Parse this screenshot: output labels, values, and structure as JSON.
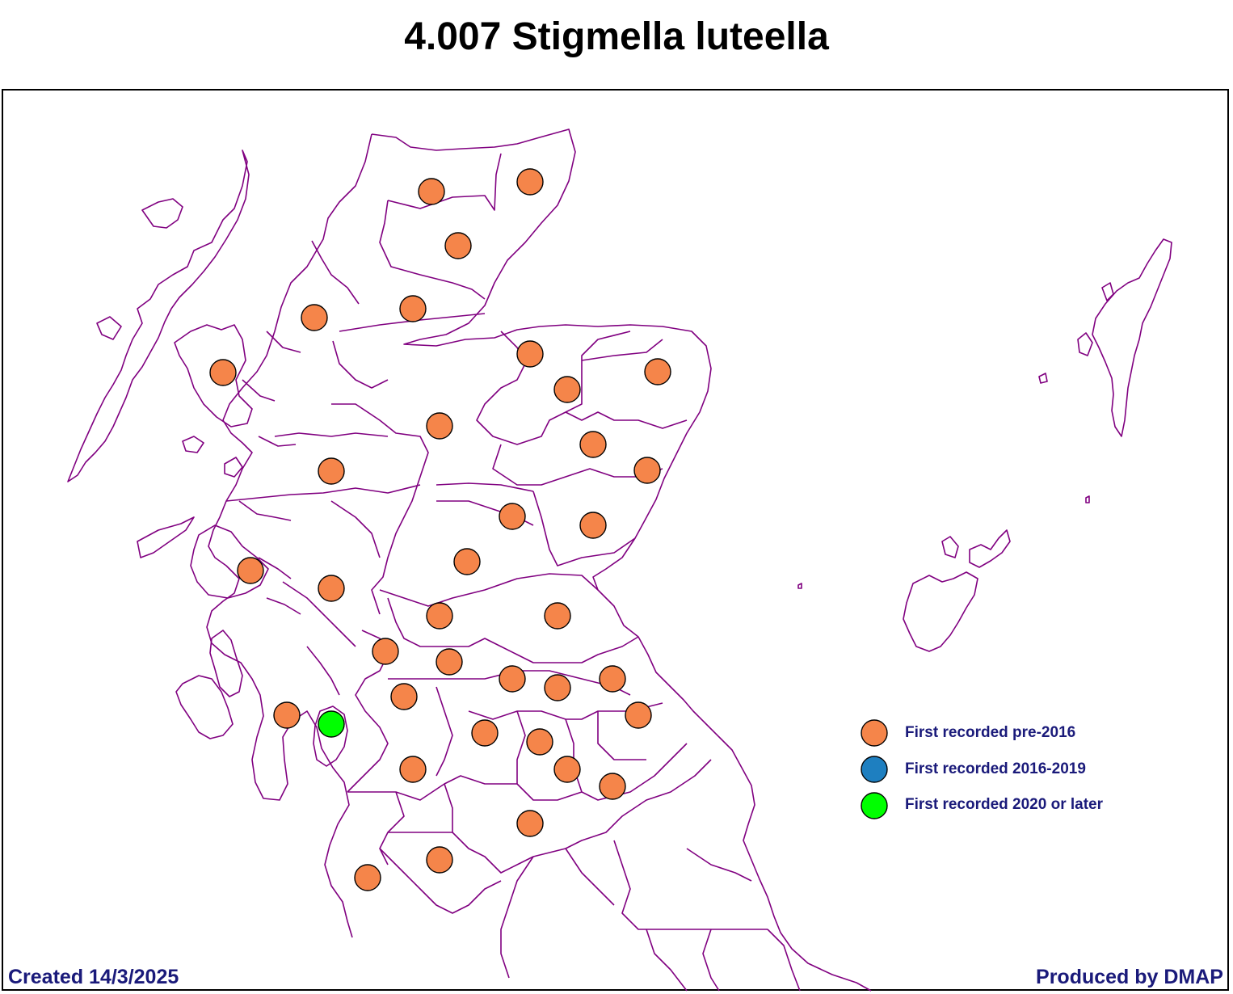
{
  "title": "4.007 Stigmella luteella",
  "footer": {
    "created": "Created 14/3/2025",
    "produced_by": "Produced by DMAP"
  },
  "colors": {
    "boundary": "#800080",
    "pre2016": "#f5854a",
    "from2016to2019": "#1e7fc0",
    "from2020": "#00ff00",
    "legend_text": "#1a1a7a"
  },
  "legend": [
    {
      "label": "First recorded pre-2016",
      "color": "#f5854a"
    },
    {
      "label": "First recorded 2016-2019",
      "color": "#1e7fc0"
    },
    {
      "label": "First recorded 2020 or later",
      "color": "#00ff00"
    }
  ],
  "records": [
    {
      "category": "pre-2016"
    },
    {
      "category": "pre-2016"
    },
    {
      "category": "pre-2016"
    },
    {
      "category": "pre-2016"
    },
    {
      "category": "pre-2016"
    },
    {
      "category": "pre-2016"
    },
    {
      "category": "pre-2016"
    },
    {
      "category": "pre-2016"
    },
    {
      "category": "pre-2016"
    },
    {
      "category": "pre-2016"
    },
    {
      "category": "pre-2016"
    },
    {
      "category": "pre-2016"
    },
    {
      "category": "pre-2016"
    },
    {
      "category": "pre-2016"
    },
    {
      "category": "pre-2016"
    },
    {
      "category": "pre-2016"
    },
    {
      "category": "pre-2016"
    },
    {
      "category": "pre-2016"
    },
    {
      "category": "pre-2016"
    },
    {
      "category": "pre-2016"
    },
    {
      "category": "pre-2016"
    },
    {
      "category": "pre-2016"
    },
    {
      "category": "pre-2016"
    },
    {
      "category": "pre-2016"
    },
    {
      "category": "pre-2016"
    },
    {
      "category": "pre-2016"
    },
    {
      "category": "pre-2016"
    },
    {
      "category": "pre-2016"
    },
    {
      "category": "pre-2016"
    },
    {
      "category": "2020 or later"
    },
    {
      "category": "pre-2016"
    },
    {
      "category": "pre-2016"
    },
    {
      "category": "pre-2016"
    },
    {
      "category": "pre-2016"
    },
    {
      "category": "pre-2016"
    },
    {
      "category": "pre-2016"
    },
    {
      "category": "pre-2016"
    },
    {
      "category": "pre-2016"
    }
  ]
}
